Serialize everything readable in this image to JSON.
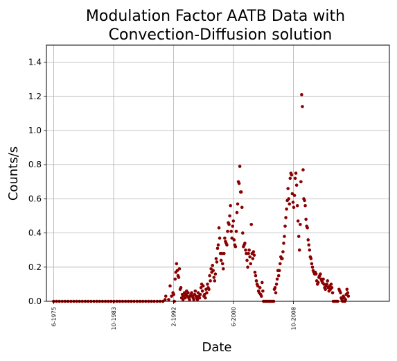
{
  "chart_data": {
    "type": "scatter",
    "title_line1": "Modulation Factor AATB Data with",
    "title_line2": "Convection-Diffusion solution",
    "xlabel": "Date",
    "ylabel": "Counts/s",
    "ylim": [
      0,
      1.5
    ],
    "yticks": [
      "0.0",
      "0.2",
      "0.4",
      "0.6",
      "0.8",
      "1.0",
      "1.2",
      "1.4"
    ],
    "xlim": [
      1974.4,
      2022.1
    ],
    "xticks": [
      {
        "label": "6-1975",
        "value": 1975.42
      },
      {
        "label": "10-1983",
        "value": 1983.75
      },
      {
        "label": "2-1992",
        "value": 1992.08
      },
      {
        "label": "6-2000",
        "value": 2000.42
      },
      {
        "label": "10-2008",
        "value": 2008.75
      }
    ],
    "grid": true,
    "marker_color": "#8b0000",
    "points": [
      [
        1975.4,
        0
      ],
      [
        1975.8,
        0
      ],
      [
        1976.2,
        0
      ],
      [
        1976.6,
        0
      ],
      [
        1977.0,
        0
      ],
      [
        1977.4,
        0
      ],
      [
        1977.8,
        0
      ],
      [
        1978.2,
        0
      ],
      [
        1978.6,
        0
      ],
      [
        1979.0,
        0
      ],
      [
        1979.4,
        0
      ],
      [
        1979.8,
        0
      ],
      [
        1980.2,
        0
      ],
      [
        1980.6,
        0
      ],
      [
        1981.0,
        0
      ],
      [
        1981.4,
        0
      ],
      [
        1981.8,
        0
      ],
      [
        1982.2,
        0
      ],
      [
        1982.6,
        0
      ],
      [
        1983.0,
        0
      ],
      [
        1983.4,
        0
      ],
      [
        1983.8,
        0
      ],
      [
        1984.2,
        0
      ],
      [
        1984.6,
        0
      ],
      [
        1985.0,
        0
      ],
      [
        1985.4,
        0
      ],
      [
        1985.8,
        0
      ],
      [
        1986.2,
        0
      ],
      [
        1986.6,
        0
      ],
      [
        1987.0,
        0
      ],
      [
        1987.4,
        0
      ],
      [
        1987.8,
        0
      ],
      [
        1988.2,
        0
      ],
      [
        1988.6,
        0
      ],
      [
        1989.0,
        0
      ],
      [
        1989.4,
        0
      ],
      [
        1989.8,
        0
      ],
      [
        1990.2,
        0
      ],
      [
        1990.6,
        0
      ],
      [
        1990.9,
        0.01
      ],
      [
        1991.0,
        0.03
      ],
      [
        1991.4,
        0.01
      ],
      [
        1991.6,
        0.09
      ],
      [
        1991.8,
        0.03
      ],
      [
        1992.0,
        0.05
      ],
      [
        1992.1,
        0.04
      ],
      [
        1992.2,
        0.0
      ],
      [
        1992.3,
        0.13
      ],
      [
        1992.4,
        0.17
      ],
      [
        1992.5,
        0.22
      ],
      [
        1992.6,
        0.18
      ],
      [
        1992.7,
        0.15
      ],
      [
        1992.8,
        0.14
      ],
      [
        1992.9,
        0.19
      ],
      [
        1993.0,
        0.07
      ],
      [
        1993.1,
        0.08
      ],
      [
        1993.2,
        0.02
      ],
      [
        1993.3,
        0.04
      ],
      [
        1993.4,
        0.01
      ],
      [
        1993.5,
        0.03
      ],
      [
        1993.6,
        0.05
      ],
      [
        1993.7,
        0.02
      ],
      [
        1993.8,
        0.04
      ],
      [
        1993.9,
        0.06
      ],
      [
        1994.0,
        0.03
      ],
      [
        1994.1,
        0.05
      ],
      [
        1994.2,
        0.02
      ],
      [
        1994.3,
        0.01
      ],
      [
        1994.4,
        0.03
      ],
      [
        1994.5,
        0.04
      ],
      [
        1994.6,
        0.05
      ],
      [
        1994.7,
        0.03
      ],
      [
        1994.8,
        0.02
      ],
      [
        1994.9,
        0.01
      ],
      [
        1995.0,
        0.04
      ],
      [
        1995.1,
        0.06
      ],
      [
        1995.2,
        0.03
      ],
      [
        1995.3,
        0.02
      ],
      [
        1995.4,
        0.01
      ],
      [
        1995.5,
        0.05
      ],
      [
        1995.6,
        0.03
      ],
      [
        1995.7,
        0.02
      ],
      [
        1995.8,
        0.04
      ],
      [
        1995.9,
        0.08
      ],
      [
        1996.0,
        0.1
      ],
      [
        1996.1,
        0.06
      ],
      [
        1996.2,
        0.09
      ],
      [
        1996.3,
        0.03
      ],
      [
        1996.4,
        0.04
      ],
      [
        1996.5,
        0.02
      ],
      [
        1996.6,
        0.07
      ],
      [
        1996.7,
        0.05
      ],
      [
        1996.8,
        0.1
      ],
      [
        1996.9,
        0.08
      ],
      [
        1997.0,
        0.07
      ],
      [
        1997.1,
        0.15
      ],
      [
        1997.2,
        0.12
      ],
      [
        1997.3,
        0.19
      ],
      [
        1997.4,
        0.17
      ],
      [
        1997.5,
        0.21
      ],
      [
        1997.6,
        0.18
      ],
      [
        1997.7,
        0.14
      ],
      [
        1997.8,
        0.12
      ],
      [
        1997.9,
        0.16
      ],
      [
        1998.0,
        0.25
      ],
      [
        1998.1,
        0.23
      ],
      [
        1998.2,
        0.31
      ],
      [
        1998.3,
        0.33
      ],
      [
        1998.4,
        0.43
      ],
      [
        1998.5,
        0.37
      ],
      [
        1998.6,
        0.28
      ],
      [
        1998.7,
        0.24
      ],
      [
        1998.8,
        0.28
      ],
      [
        1998.9,
        0.22
      ],
      [
        1999.0,
        0.19
      ],
      [
        1999.1,
        0.28
      ],
      [
        1999.2,
        0.37
      ],
      [
        1999.3,
        0.35
      ],
      [
        1999.4,
        0.34
      ],
      [
        1999.5,
        0.33
      ],
      [
        1999.6,
        0.41
      ],
      [
        1999.7,
        0.46
      ],
      [
        1999.8,
        0.45
      ],
      [
        1999.9,
        0.5
      ],
      [
        2000.0,
        0.56
      ],
      [
        2000.1,
        0.41
      ],
      [
        2000.2,
        0.37
      ],
      [
        2000.3,
        0.44
      ],
      [
        2000.4,
        0.47
      ],
      [
        2000.5,
        0.36
      ],
      [
        2000.6,
        0.33
      ],
      [
        2000.7,
        0.32
      ],
      [
        2000.8,
        0.41
      ],
      [
        2000.9,
        0.52
      ],
      [
        2001.0,
        0.57
      ],
      [
        2001.1,
        0.7
      ],
      [
        2001.2,
        0.69
      ],
      [
        2001.3,
        0.79
      ],
      [
        2001.4,
        0.64
      ],
      [
        2001.5,
        0.64
      ],
      [
        2001.6,
        0.55
      ],
      [
        2001.7,
        0.4
      ],
      [
        2001.8,
        0.32
      ],
      [
        2001.9,
        0.33
      ],
      [
        2002.0,
        0.34
      ],
      [
        2002.1,
        0.3
      ],
      [
        2002.2,
        0.28
      ],
      [
        2002.3,
        0.24
      ],
      [
        2002.4,
        0.2
      ],
      [
        2002.5,
        0.28
      ],
      [
        2002.6,
        0.3
      ],
      [
        2002.7,
        0.26
      ],
      [
        2002.8,
        0.22
      ],
      [
        2002.9,
        0.45
      ],
      [
        2003.0,
        0.28
      ],
      [
        2003.1,
        0.25
      ],
      [
        2003.2,
        0.29
      ],
      [
        2003.3,
        0.27
      ],
      [
        2003.4,
        0.17
      ],
      [
        2003.5,
        0.15
      ],
      [
        2003.6,
        0.12
      ],
      [
        2003.7,
        0.1
      ],
      [
        2003.8,
        0.09
      ],
      [
        2003.9,
        0.06
      ],
      [
        2004.0,
        0.05
      ],
      [
        2004.1,
        0.08
      ],
      [
        2004.2,
        0.04
      ],
      [
        2004.3,
        0.03
      ],
      [
        2004.4,
        0.11
      ],
      [
        2004.5,
        0.06
      ],
      [
        2004.6,
        0.0
      ],
      [
        2004.8,
        0.0
      ],
      [
        2005.0,
        0.0
      ],
      [
        2005.2,
        0.0
      ],
      [
        2005.4,
        0.0
      ],
      [
        2005.6,
        0.0
      ],
      [
        2005.8,
        0.0
      ],
      [
        2006.0,
        0.0
      ],
      [
        2006.1,
        0.07
      ],
      [
        2006.2,
        0.08
      ],
      [
        2006.3,
        0.05
      ],
      [
        2006.4,
        0.1
      ],
      [
        2006.5,
        0.13
      ],
      [
        2006.6,
        0.18
      ],
      [
        2006.7,
        0.15
      ],
      [
        2006.8,
        0.18
      ],
      [
        2006.9,
        0.22
      ],
      [
        2007.0,
        0.26
      ],
      [
        2007.1,
        0.25
      ],
      [
        2007.2,
        0.25
      ],
      [
        2007.3,
        0.29
      ],
      [
        2007.4,
        0.34
      ],
      [
        2007.5,
        0.38
      ],
      [
        2007.6,
        0.44
      ],
      [
        2007.7,
        0.49
      ],
      [
        2007.8,
        0.54
      ],
      [
        2007.9,
        0.59
      ],
      [
        2008.0,
        0.66
      ],
      [
        2008.1,
        0.6
      ],
      [
        2008.2,
        0.57
      ],
      [
        2008.3,
        0.72
      ],
      [
        2008.4,
        0.75
      ],
      [
        2008.5,
        0.74
      ],
      [
        2008.6,
        0.63
      ],
      [
        2008.7,
        0.58
      ],
      [
        2008.8,
        0.55
      ],
      [
        2008.9,
        0.62
      ],
      [
        2009.0,
        0.72
      ],
      [
        2009.1,
        0.75
      ],
      [
        2009.2,
        0.68
      ],
      [
        2009.3,
        0.56
      ],
      [
        2009.4,
        0.47
      ],
      [
        2009.5,
        0.38
      ],
      [
        2009.6,
        0.3
      ],
      [
        2009.7,
        0.45
      ],
      [
        2009.8,
        0.7
      ],
      [
        2009.9,
        1.21
      ],
      [
        2010.0,
        1.14
      ],
      [
        2010.1,
        0.77
      ],
      [
        2010.2,
        0.6
      ],
      [
        2010.3,
        0.59
      ],
      [
        2010.4,
        0.56
      ],
      [
        2010.5,
        0.48
      ],
      [
        2010.6,
        0.44
      ],
      [
        2010.7,
        0.43
      ],
      [
        2010.8,
        0.36
      ],
      [
        2010.9,
        0.33
      ],
      [
        2011.0,
        0.3
      ],
      [
        2011.1,
        0.26
      ],
      [
        2011.2,
        0.25
      ],
      [
        2011.3,
        0.22
      ],
      [
        2011.4,
        0.2
      ],
      [
        2011.5,
        0.18
      ],
      [
        2011.6,
        0.17
      ],
      [
        2011.7,
        0.16
      ],
      [
        2011.8,
        0.17
      ],
      [
        2011.9,
        0.16
      ],
      [
        2012.0,
        0.12
      ],
      [
        2012.1,
        0.1
      ],
      [
        2012.2,
        0.11
      ],
      [
        2012.3,
        0.14
      ],
      [
        2012.4,
        0.15
      ],
      [
        2012.5,
        0.16
      ],
      [
        2012.6,
        0.13
      ],
      [
        2012.7,
        0.12
      ],
      [
        2012.8,
        0.11
      ],
      [
        2012.9,
        0.13
      ],
      [
        2013.0,
        0.1
      ],
      [
        2013.1,
        0.08
      ],
      [
        2013.2,
        0.07
      ],
      [
        2013.3,
        0.09
      ],
      [
        2013.4,
        0.1
      ],
      [
        2013.5,
        0.12
      ],
      [
        2013.6,
        0.08
      ],
      [
        2013.7,
        0.06
      ],
      [
        2013.8,
        0.09
      ],
      [
        2013.9,
        0.07
      ],
      [
        2014.0,
        0.1
      ],
      [
        2014.1,
        0.08
      ],
      [
        2014.2,
        0.05
      ],
      [
        2014.3,
        0.0
      ],
      [
        2014.5,
        0.0
      ],
      [
        2014.7,
        0.0
      ],
      [
        2014.9,
        0.0
      ],
      [
        2015.1,
        0.07
      ],
      [
        2015.2,
        0.06
      ],
      [
        2015.3,
        0.05
      ],
      [
        2015.4,
        0.02
      ],
      [
        2015.5,
        0.01
      ],
      [
        2015.6,
        0.0
      ],
      [
        2015.7,
        0.03
      ],
      [
        2015.8,
        0.02
      ],
      [
        2015.9,
        0.0
      ],
      [
        2016.0,
        0.01
      ],
      [
        2016.1,
        0.04
      ],
      [
        2016.2,
        0.07
      ],
      [
        2016.3,
        0.05
      ],
      [
        2016.4,
        0.03
      ]
    ]
  }
}
